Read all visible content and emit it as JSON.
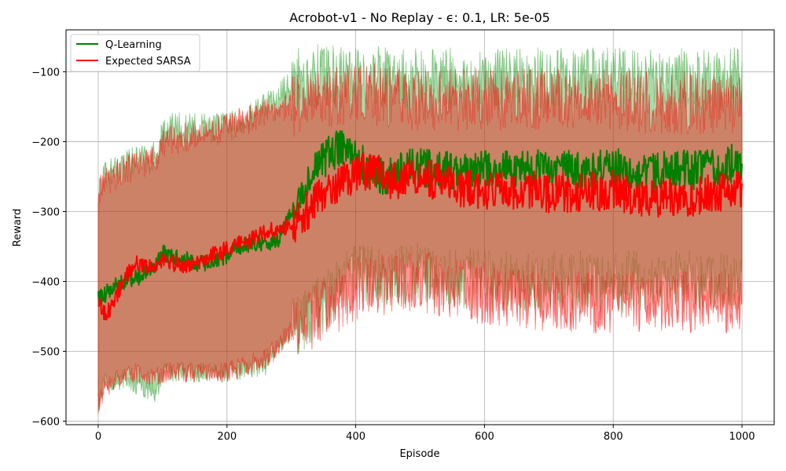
{
  "chart_data": {
    "type": "line",
    "title": "Acrobot-v1 - No Replay - ϵ: 0.1, LR: 5e-05",
    "xlabel": "Episode",
    "ylabel": "Reward",
    "xlim": [
      -50,
      1050
    ],
    "ylim": [
      -605,
      -40
    ],
    "xticks": [
      0,
      200,
      400,
      600,
      800,
      1000
    ],
    "yticks": [
      -600,
      -500,
      -400,
      -300,
      -200,
      -100
    ],
    "xtick_labels": [
      "0",
      "200",
      "400",
      "600",
      "800",
      "1000"
    ],
    "ytick_labels": [
      "−600",
      "−500",
      "−400",
      "−300",
      "−200",
      "−100"
    ],
    "grid": true,
    "legend_position": "top-left",
    "shaded_band": "min-max range per series",
    "series": [
      {
        "name": "Q-Learning",
        "color": "#008000",
        "band_color": "#2ca02c",
        "mean": {
          "x": [
            0,
            10,
            20,
            40,
            60,
            80,
            100,
            120,
            140,
            160,
            180,
            200,
            220,
            240,
            260,
            280,
            300,
            320,
            340,
            360,
            380,
            400,
            420,
            440,
            460,
            480,
            500,
            520,
            540,
            560,
            580,
            600,
            620,
            640,
            660,
            680,
            700,
            720,
            740,
            760,
            780,
            800,
            820,
            840,
            860,
            880,
            900,
            920,
            940,
            960,
            980,
            1000
          ],
          "y": [
            -425,
            -420,
            -410,
            -400,
            -395,
            -385,
            -360,
            -365,
            -370,
            -375,
            -372,
            -365,
            -350,
            -345,
            -345,
            -340,
            -300,
            -270,
            -240,
            -215,
            -205,
            -225,
            -240,
            -250,
            -245,
            -240,
            -235,
            -240,
            -240,
            -245,
            -245,
            -240,
            -238,
            -238,
            -242,
            -240,
            -238,
            -238,
            -240,
            -242,
            -238,
            -236,
            -240,
            -244,
            -246,
            -240,
            -238,
            -242,
            -240,
            -236,
            -232,
            -230
          ]
        },
        "band_upper": {
          "x": [
            0,
            10,
            40,
            90,
            100,
            200,
            260,
            280,
            300,
            340,
            400,
            500,
            600,
            700,
            800,
            900,
            1000
          ],
          "y": [
            -270,
            -250,
            -230,
            -220,
            -180,
            -180,
            -150,
            -140,
            -110,
            -105,
            -105,
            -110,
            -110,
            -110,
            -110,
            -110,
            -110
          ]
        },
        "band_lower": {
          "x": [
            0,
            10,
            40,
            90,
            100,
            200,
            260,
            280,
            300,
            340,
            400,
            500,
            600,
            700,
            800,
            900,
            1000
          ],
          "y": [
            -575,
            -545,
            -540,
            -560,
            -530,
            -530,
            -520,
            -490,
            -470,
            -440,
            -390,
            -390,
            -400,
            -400,
            -400,
            -400,
            -400
          ]
        }
      },
      {
        "name": "Expected SARSA",
        "color": "#ff0000",
        "band_color": "#ff0000",
        "mean": {
          "x": [
            0,
            10,
            20,
            40,
            60,
            80,
            100,
            120,
            140,
            160,
            180,
            200,
            220,
            240,
            260,
            280,
            300,
            320,
            340,
            360,
            380,
            400,
            420,
            440,
            460,
            480,
            500,
            520,
            540,
            560,
            580,
            600,
            620,
            640,
            660,
            680,
            700,
            720,
            740,
            760,
            780,
            800,
            820,
            840,
            860,
            880,
            900,
            920,
            940,
            960,
            980,
            1000
          ],
          "y": [
            -425,
            -445,
            -440,
            -395,
            -375,
            -380,
            -370,
            -375,
            -378,
            -372,
            -360,
            -355,
            -345,
            -340,
            -330,
            -325,
            -320,
            -305,
            -285,
            -265,
            -255,
            -245,
            -240,
            -250,
            -255,
            -255,
            -250,
            -255,
            -260,
            -265,
            -270,
            -270,
            -268,
            -270,
            -272,
            -270,
            -275,
            -272,
            -275,
            -270,
            -272,
            -268,
            -275,
            -280,
            -282,
            -280,
            -278,
            -282,
            -276,
            -272,
            -270,
            -270
          ]
        },
        "band_upper": {
          "x": [
            0,
            10,
            40,
            90,
            100,
            200,
            260,
            280,
            300,
            340,
            400,
            500,
            600,
            700,
            800,
            900,
            1000
          ],
          "y": [
            -270,
            -260,
            -240,
            -225,
            -200,
            -180,
            -160,
            -155,
            -150,
            -140,
            -130,
            -140,
            -140,
            -140,
            -140,
            -145,
            -145
          ]
        },
        "band_lower": {
          "x": [
            0,
            10,
            40,
            90,
            100,
            200,
            260,
            280,
            300,
            340,
            400,
            500,
            600,
            700,
            800,
            900,
            1000
          ],
          "y": [
            -575,
            -555,
            -530,
            -535,
            -530,
            -530,
            -510,
            -490,
            -470,
            -450,
            -410,
            -400,
            -420,
            -430,
            -430,
            -430,
            -430
          ]
        }
      }
    ]
  }
}
